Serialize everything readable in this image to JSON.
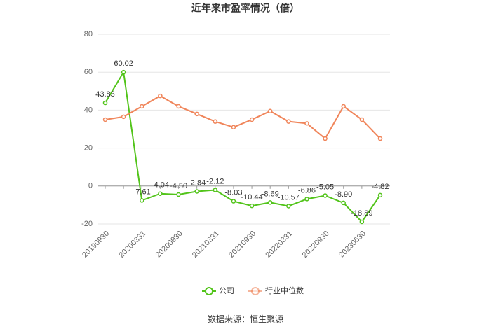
{
  "chart_data": {
    "type": "line",
    "title": "近年来市盈率情况（倍）",
    "source": "数据来源：恒生聚源",
    "categories": [
      "20190930",
      null,
      "20200331",
      null,
      "20200930",
      null,
      "20210331",
      null,
      "20210930",
      null,
      "20220331",
      null,
      "20220930",
      null,
      "20230630",
      null
    ],
    "series": [
      {
        "name": "公司",
        "color": "#52c41a",
        "values": [
          43.83,
          60.02,
          -7.61,
          -4.04,
          -4.5,
          -2.84,
          -2.12,
          -8.03,
          -10.44,
          -8.69,
          -10.57,
          -6.86,
          -5.05,
          -8.9,
          -18.89,
          -4.82
        ],
        "value_labels": [
          "43.83",
          "60.02",
          "-7.61",
          "-4.04",
          "-4.50",
          "-2.84",
          "-2.12",
          "-8.03",
          "-10.44",
          "-8.69",
          "-10.57",
          "-6.86",
          "-5.05",
          "-8.90",
          "-18.89",
          "-4.82"
        ]
      },
      {
        "name": "行业中位数",
        "color": "#f0855a",
        "values": [
          35,
          36.5,
          42,
          47.5,
          42,
          38,
          34,
          31,
          35,
          39.5,
          34,
          33,
          25,
          42,
          35,
          25
        ]
      }
    ],
    "ylim": [
      -20,
      80
    ],
    "yticks": [
      -20,
      0,
      20,
      40,
      60,
      80
    ],
    "grid": true,
    "legend": "bottom"
  }
}
